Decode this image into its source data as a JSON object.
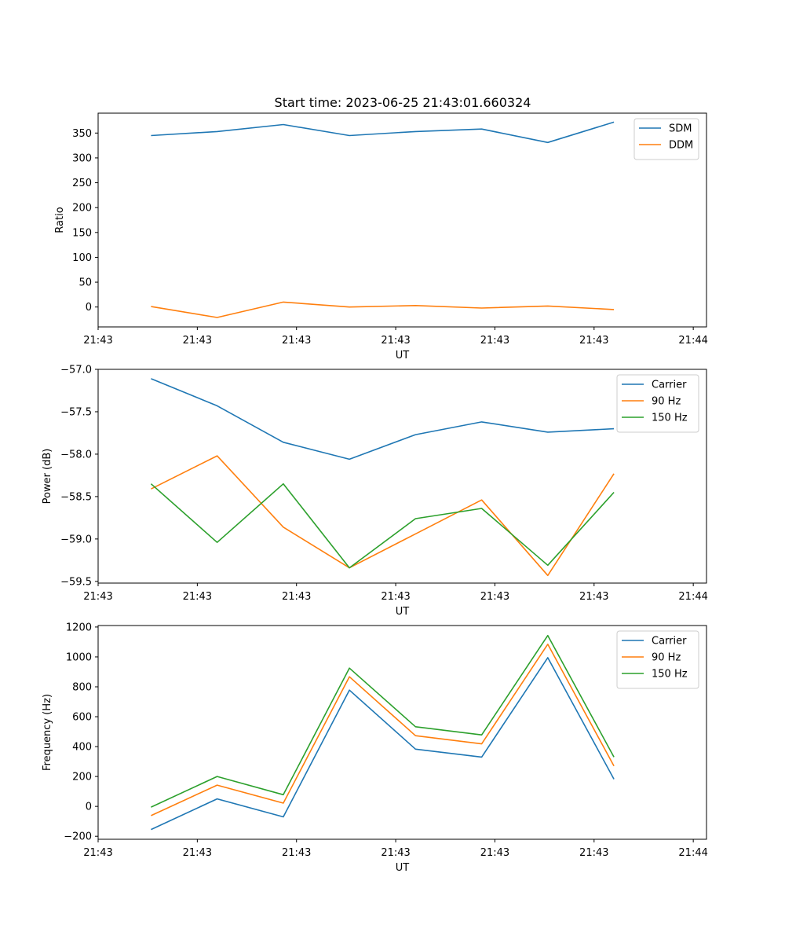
{
  "figure": {
    "title": "Start time: 2023-06-25 21:43:01.660324"
  },
  "colors": {
    "blue": "#1f77b4",
    "orange": "#ff7f0e",
    "green": "#2ca02c"
  },
  "chart_data": [
    {
      "type": "line",
      "title": "Start time: 2023-06-25 21:43:01.660324",
      "xlabel": "UT",
      "ylabel": "Ratio",
      "x": [
        1,
        2,
        3,
        4,
        5,
        6,
        7,
        8
      ],
      "xlim": [
        0.2,
        9.4
      ],
      "xticks": [
        0.2,
        1.7,
        3.2,
        4.7,
        6.2,
        7.7,
        9.2
      ],
      "xtick_labels": [
        "21:43",
        "21:43",
        "21:43",
        "21:43",
        "21:43",
        "21:43",
        "21:44"
      ],
      "ylim": [
        -40,
        390
      ],
      "yticks": [
        0,
        50,
        100,
        150,
        200,
        250,
        300,
        350
      ],
      "ytick_labels": [
        "0",
        "50",
        "100",
        "150",
        "200",
        "250",
        "300",
        "350"
      ],
      "legend": "upper right",
      "series": [
        {
          "name": "SDM",
          "color": "#1f77b4",
          "values": [
            345,
            353,
            367,
            345,
            353,
            358,
            331,
            372
          ]
        },
        {
          "name": "DDM",
          "color": "#ff7f0e",
          "values": [
            1,
            -21,
            10,
            0,
            3,
            -2,
            2,
            -5
          ]
        }
      ]
    },
    {
      "type": "line",
      "xlabel": "UT",
      "ylabel": "Power (dB)",
      "x": [
        1,
        2,
        3,
        4,
        5,
        6,
        7,
        8
      ],
      "xlim": [
        0.2,
        9.4
      ],
      "xticks": [
        0.2,
        1.7,
        3.2,
        4.7,
        6.2,
        7.7,
        9.2
      ],
      "xtick_labels": [
        "21:43",
        "21:43",
        "21:43",
        "21:43",
        "21:43",
        "21:43",
        "21:44"
      ],
      "ylim": [
        -59.52,
        -57.0
      ],
      "yticks": [
        -57.0,
        -57.5,
        -58.0,
        -58.5,
        -59.0,
        -59.5
      ],
      "ytick_labels": [
        "−57.0",
        "−57.5",
        "−58.0",
        "−58.5",
        "−59.0",
        "−59.5"
      ],
      "legend": "upper right",
      "series": [
        {
          "name": "Carrier",
          "color": "#1f77b4",
          "values": [
            -57.11,
            -57.43,
            -57.86,
            -58.06,
            -57.77,
            -57.62,
            -57.74,
            -57.7
          ]
        },
        {
          "name": "90 Hz",
          "color": "#ff7f0e",
          "values": [
            -58.41,
            -58.02,
            -58.86,
            -59.34,
            -58.94,
            -58.54,
            -59.43,
            -58.23
          ]
        },
        {
          "name": "150 Hz",
          "color": "#2ca02c",
          "values": [
            -58.35,
            -59.04,
            -58.35,
            -59.34,
            -58.76,
            -58.64,
            -59.31,
            -58.45
          ]
        }
      ]
    },
    {
      "type": "line",
      "xlabel": "UT",
      "ylabel": "Frequency (Hz)",
      "x": [
        1,
        2,
        3,
        4,
        5,
        6,
        7,
        8
      ],
      "xlim": [
        0.2,
        9.4
      ],
      "xticks": [
        0.2,
        1.7,
        3.2,
        4.7,
        6.2,
        7.7,
        9.2
      ],
      "xtick_labels": [
        "21:43",
        "21:43",
        "21:43",
        "21:43",
        "21:43",
        "21:43",
        "21:44"
      ],
      "ylim": [
        -220,
        1210
      ],
      "yticks": [
        -200,
        0,
        200,
        400,
        600,
        800,
        1000,
        1200
      ],
      "ytick_labels": [
        "−200",
        "0",
        "200",
        "400",
        "600",
        "800",
        "1000",
        "1200"
      ],
      "legend": "upper right",
      "series": [
        {
          "name": "Carrier",
          "color": "#1f77b4",
          "values": [
            -155,
            50,
            -70,
            778,
            383,
            330,
            995,
            182
          ]
        },
        {
          "name": "90 Hz",
          "color": "#ff7f0e",
          "values": [
            -62,
            142,
            22,
            867,
            473,
            418,
            1085,
            270
          ]
        },
        {
          "name": "150 Hz",
          "color": "#2ca02c",
          "values": [
            -5,
            200,
            78,
            925,
            533,
            478,
            1143,
            330
          ]
        }
      ]
    }
  ]
}
